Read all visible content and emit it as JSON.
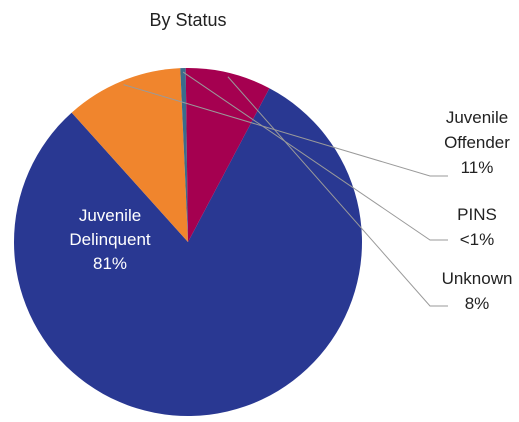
{
  "chart_data": {
    "type": "pie",
    "title": "By Status",
    "slices": [
      {
        "name": "Juvenile Delinquent",
        "line1": "Juvenile",
        "line2": "Delinquent",
        "value": 81,
        "pct_label": "81%",
        "color": "#293892"
      },
      {
        "name": "Juvenile Offender",
        "line1": "Juvenile",
        "line2": "Offender",
        "value": 11,
        "pct_label": "11%",
        "color": "#F0852D"
      },
      {
        "name": "PINS",
        "line1": "PINS",
        "line2": "",
        "value": 0.5,
        "pct_label": "<1%",
        "color": "#3A6C8C"
      },
      {
        "name": "Unknown",
        "line1": "Unknown",
        "line2": "",
        "value": 8,
        "pct_label": "8%",
        "color": "#A50050"
      }
    ]
  }
}
